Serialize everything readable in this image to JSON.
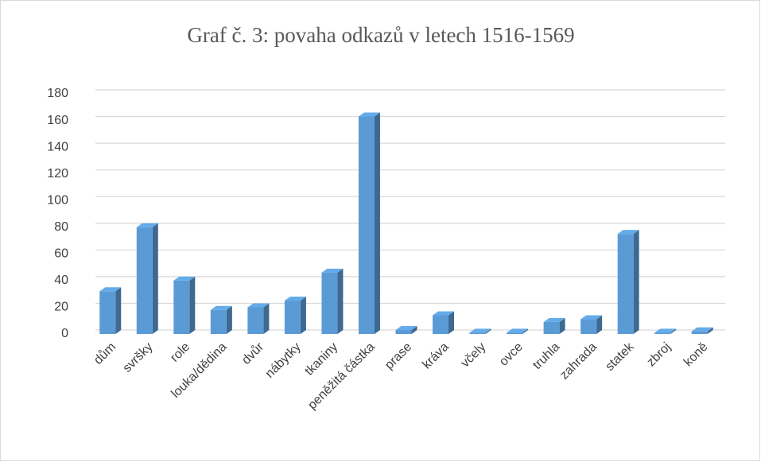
{
  "chart_data": {
    "type": "bar3d",
    "title": "Graf č. 3: povaha odkazů v letech 1516-1569",
    "categories": [
      "dům",
      "svršky",
      "role",
      "louka/dědina",
      "dvůr",
      "nábytky",
      "tkaniny",
      "peněžitá částka",
      "prase",
      "kráva",
      "včely",
      "ovce",
      "truhla",
      "zahrada",
      "statek",
      "zbroj",
      "koně"
    ],
    "values": [
      32,
      80,
      40,
      18,
      20,
      25,
      46,
      163,
      3,
      14,
      1,
      1,
      9,
      11,
      75,
      1,
      2
    ],
    "color": "#5b9bd5",
    "ylim": [
      0,
      180
    ],
    "yticks": [
      0,
      20,
      40,
      60,
      80,
      100,
      120,
      140,
      160,
      180
    ],
    "grid": true
  }
}
